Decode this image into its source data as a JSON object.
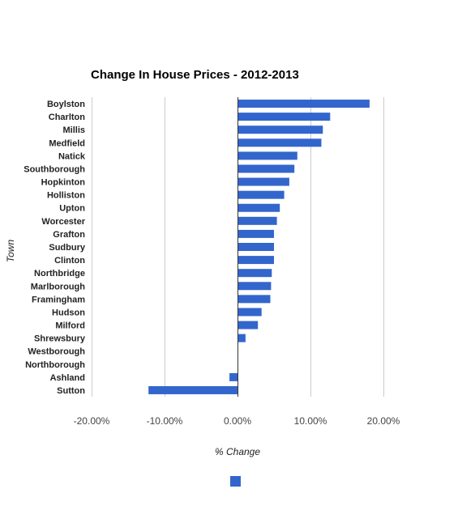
{
  "chart_data": {
    "type": "bar",
    "orientation": "horizontal",
    "title": "Change In House Prices - 2012-2013",
    "xlabel": "% Change",
    "ylabel": "Town",
    "categories": [
      "Boylston",
      "Charlton",
      "Millis",
      "Medfield",
      "Natick",
      "Southborough",
      "Hopkinton",
      "Holliston",
      "Upton",
      "Worcester",
      "Grafton",
      "Sudbury",
      "Clinton",
      "Northbridge",
      "Marlborough",
      "Framingham",
      "Hudson",
      "Milford",
      "Shrewsbury",
      "Westborough",
      "Northborough",
      "Ashland",
      "Sutton"
    ],
    "values": [
      18.1,
      12.7,
      11.7,
      11.5,
      8.2,
      7.8,
      7.1,
      6.4,
      5.8,
      5.4,
      5.0,
      5.0,
      5.0,
      4.7,
      4.6,
      4.5,
      3.3,
      2.8,
      1.1,
      0,
      0,
      -1.1,
      -12.2
    ],
    "xlim": [
      -20,
      20
    ],
    "xticks": [
      -20,
      -10,
      0,
      10,
      20
    ],
    "xtick_labels": [
      "-20.00%",
      "-10.00%",
      "0.00%",
      "10.00%",
      "20.00%"
    ],
    "grid": true,
    "legend": "bottom",
    "bar_color": "#3366cc"
  }
}
